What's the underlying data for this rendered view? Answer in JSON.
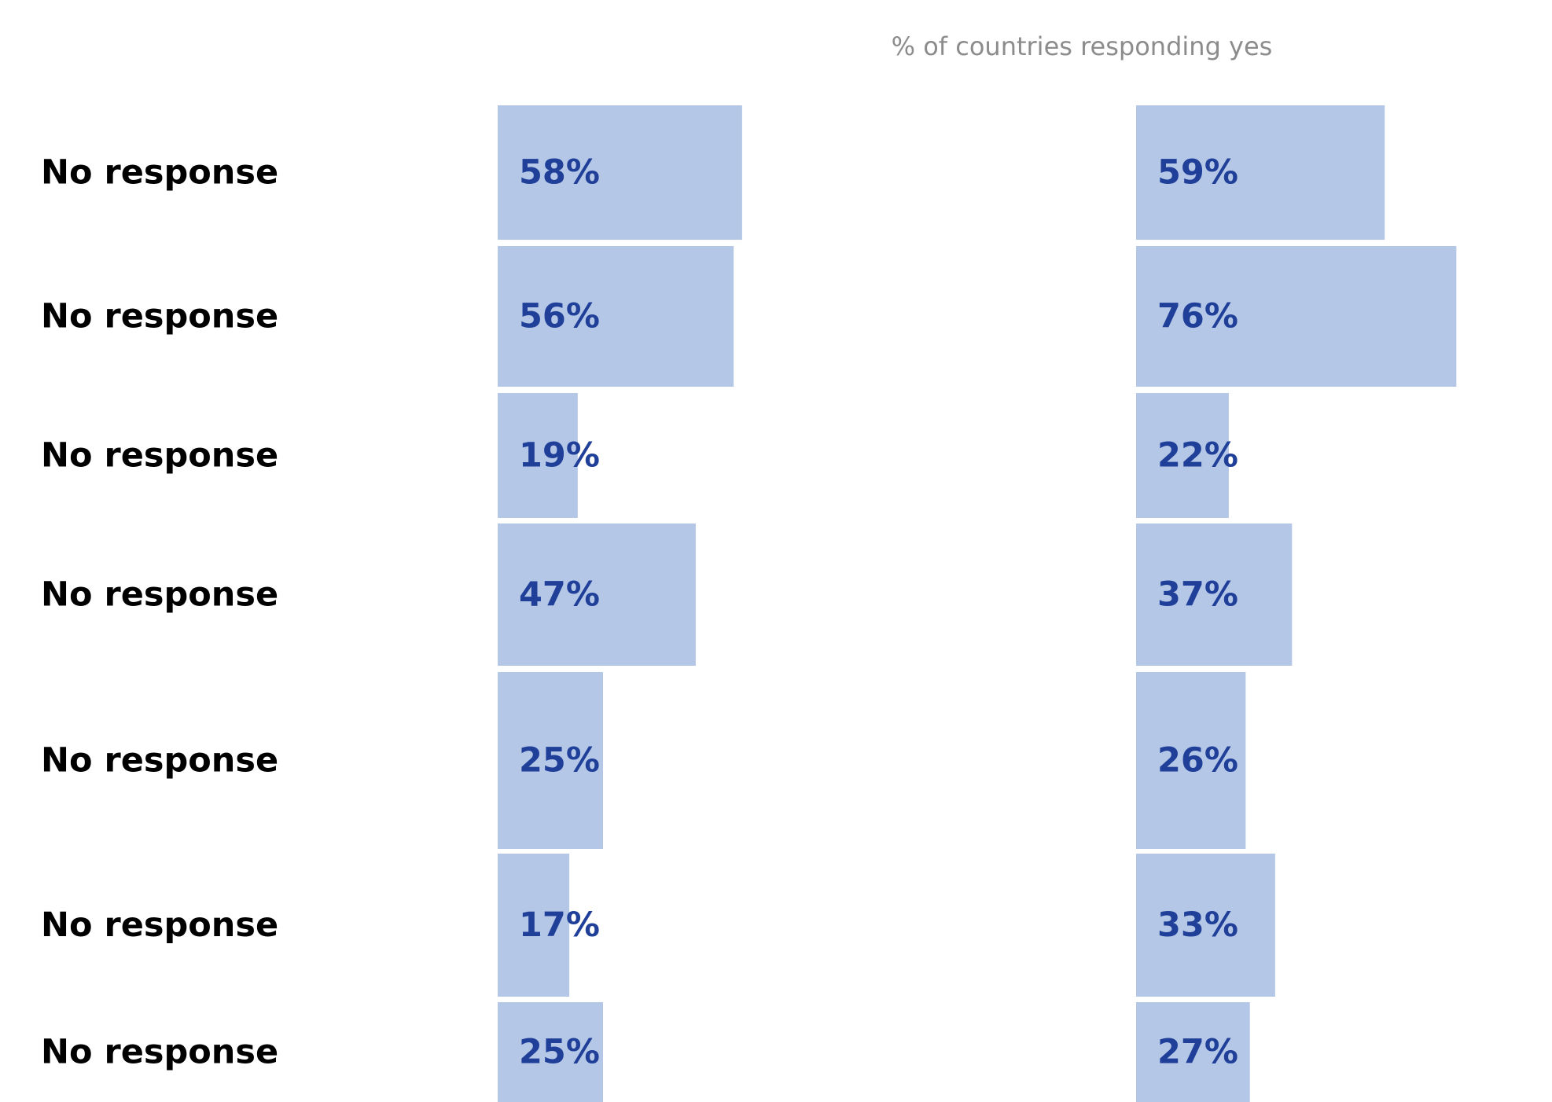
{
  "chart_data": {
    "type": "bar",
    "orientation": "horizontal",
    "subtitle": "% of countries responding yes",
    "categories": [
      "No response",
      "No response",
      "No response",
      "No response",
      "No response",
      "No response",
      "No response"
    ],
    "series": [
      {
        "values": [
          58,
          56,
          19,
          47,
          25,
          17,
          25
        ],
        "labels": [
          "58%",
          "56%",
          "19%",
          "47%",
          "25%",
          "17%",
          "25%"
        ]
      },
      {
        "values": [
          59,
          76,
          22,
          37,
          26,
          33,
          27
        ],
        "labels": [
          "59%",
          "76%",
          "22%",
          "37%",
          "26%",
          "33%",
          "27%"
        ]
      }
    ],
    "xlim": [
      0,
      100
    ],
    "grid": false,
    "legend": "none",
    "colors": {
      "bar": "#b4c7e7",
      "data_label": "#1f3f99",
      "category_label": "#000000",
      "subtitle": "#8c8c8c"
    }
  }
}
